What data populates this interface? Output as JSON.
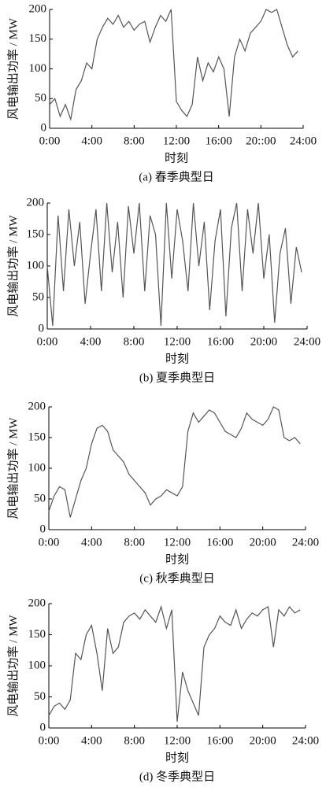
{
  "chart_data": [
    {
      "type": "line",
      "caption": "(a)  春季典型日",
      "xlabel": "时刻",
      "ylabel": "风电输出功率 / MW",
      "color": "#555555",
      "x": [
        0,
        0.5,
        1,
        1.5,
        2,
        2.5,
        3,
        3.5,
        4,
        4.5,
        5,
        5.5,
        6,
        6.5,
        7,
        7.5,
        8,
        8.5,
        9,
        9.5,
        10,
        10.5,
        11,
        11.5,
        12,
        12.5,
        13,
        13.5,
        14,
        14.5,
        15,
        15.5,
        16,
        16.5,
        17,
        17.5,
        18,
        18.5,
        19,
        19.5,
        20,
        20.5,
        21,
        21.5,
        22,
        22.5,
        23,
        23.5
      ],
      "values": [
        40,
        50,
        20,
        40,
        15,
        65,
        80,
        110,
        100,
        150,
        170,
        185,
        175,
        190,
        170,
        180,
        165,
        175,
        180,
        145,
        170,
        190,
        180,
        200,
        45,
        30,
        20,
        40,
        120,
        80,
        110,
        95,
        120,
        100,
        20,
        120,
        150,
        130,
        160,
        170,
        180,
        200,
        195,
        200,
        170,
        140,
        120,
        130
      ],
      "xlim": [
        0,
        24
      ],
      "ylim": [
        0,
        200
      ],
      "yticks": [
        0,
        50,
        100,
        150,
        200
      ],
      "xticks": [
        {
          "value": 0,
          "label": "0:00"
        },
        {
          "value": 4,
          "label": "4:00"
        },
        {
          "value": 8,
          "label": "8:00"
        },
        {
          "value": 12,
          "label": "12:00"
        },
        {
          "value": 16,
          "label": "16:00"
        },
        {
          "value": 20,
          "label": "20::00"
        },
        {
          "value": 24,
          "label": "24:00"
        }
      ]
    },
    {
      "type": "line",
      "caption": "(b)  夏季典型日",
      "xlabel": "时刻",
      "ylabel": "风电输出功率 / MW",
      "color": "#555555",
      "x": [
        0,
        0.5,
        1,
        1.5,
        2,
        2.5,
        3,
        3.5,
        4,
        4.5,
        5,
        5.5,
        6,
        6.5,
        7,
        7.5,
        8,
        8.5,
        9,
        9.5,
        10,
        10.5,
        11,
        11.5,
        12,
        12.5,
        13,
        13.5,
        14,
        14.5,
        15,
        15.5,
        16,
        16.5,
        17,
        17.5,
        18,
        18.5,
        19,
        19.5,
        20,
        20.5,
        21,
        21.5,
        22,
        22.5,
        23,
        23.5
      ],
      "values": [
        100,
        5,
        180,
        60,
        190,
        100,
        170,
        40,
        120,
        190,
        60,
        200,
        90,
        170,
        50,
        195,
        120,
        200,
        60,
        180,
        150,
        5,
        200,
        80,
        190,
        140,
        60,
        200,
        100,
        170,
        30,
        140,
        190,
        20,
        160,
        200,
        60,
        190,
        120,
        200,
        80,
        150,
        10,
        120,
        160,
        40,
        130,
        90
      ],
      "xlim": [
        0,
        24
      ],
      "ylim": [
        0,
        200
      ],
      "yticks": [
        0,
        50,
        100,
        150,
        200
      ],
      "xticks": [
        {
          "value": 0,
          "label": "0:00"
        },
        {
          "value": 4,
          "label": "4:00"
        },
        {
          "value": 8,
          "label": "8:00"
        },
        {
          "value": 12,
          "label": "12:00"
        },
        {
          "value": 16,
          "label": "16:00"
        },
        {
          "value": 20,
          "label": "20:00"
        },
        {
          "value": 24,
          "label": "24:00"
        }
      ]
    },
    {
      "type": "line",
      "caption": "(c)  秋季典型日",
      "xlabel": "时刻",
      "ylabel": "风电输出功率 / MW",
      "color": "#555555",
      "x": [
        0,
        0.5,
        1,
        1.5,
        2,
        2.5,
        3,
        3.5,
        4,
        4.5,
        5,
        5.5,
        6,
        6.5,
        7,
        7.5,
        8,
        8.5,
        9,
        9.5,
        10,
        10.5,
        11,
        11.5,
        12,
        12.5,
        13,
        13.5,
        14,
        14.5,
        15,
        15.5,
        16,
        16.5,
        17,
        17.5,
        18,
        18.5,
        19,
        19.5,
        20,
        20.5,
        21,
        21.5,
        22,
        22.5,
        23,
        23.5
      ],
      "values": [
        30,
        55,
        70,
        65,
        20,
        50,
        80,
        100,
        140,
        165,
        170,
        160,
        130,
        120,
        110,
        90,
        80,
        70,
        60,
        40,
        50,
        55,
        65,
        60,
        55,
        70,
        160,
        190,
        175,
        185,
        195,
        190,
        175,
        160,
        155,
        150,
        165,
        190,
        180,
        175,
        170,
        180,
        200,
        195,
        150,
        145,
        150,
        140
      ],
      "xlim": [
        0,
        24
      ],
      "ylim": [
        0,
        200
      ],
      "yticks": [
        0,
        50,
        100,
        150,
        200
      ],
      "xticks": [
        {
          "value": 0,
          "label": "0:00"
        },
        {
          "value": 4,
          "label": "4:00"
        },
        {
          "value": 8,
          "label": "8:00"
        },
        {
          "value": 12,
          "label": "12:00"
        },
        {
          "value": 16,
          "label": "16:00"
        },
        {
          "value": 20,
          "label": "20:00"
        },
        {
          "value": 24,
          "label": "24:00"
        }
      ]
    },
    {
      "type": "line",
      "caption": "(d)  冬季典型日",
      "xlabel": "时刻",
      "ylabel": "风电输出功率 / MW",
      "color": "#555555",
      "x": [
        0,
        0.5,
        1,
        1.5,
        2,
        2.5,
        3,
        3.5,
        4,
        4.5,
        5,
        5.5,
        6,
        6.5,
        7,
        7.5,
        8,
        8.5,
        9,
        9.5,
        10,
        10.5,
        11,
        11.5,
        12,
        12.5,
        13,
        13.5,
        14,
        14.5,
        15,
        15.5,
        16,
        16.5,
        17,
        17.5,
        18,
        18.5,
        19,
        19.5,
        20,
        20.5,
        21,
        21.5,
        22,
        22.5,
        23,
        23.5
      ],
      "values": [
        20,
        35,
        40,
        30,
        45,
        120,
        110,
        150,
        165,
        120,
        60,
        160,
        120,
        130,
        170,
        180,
        185,
        175,
        190,
        180,
        170,
        195,
        160,
        190,
        10,
        90,
        60,
        40,
        20,
        130,
        150,
        160,
        180,
        170,
        165,
        190,
        160,
        175,
        185,
        180,
        190,
        195,
        130,
        190,
        180,
        195,
        185,
        190
      ],
      "xlim": [
        0,
        24
      ],
      "ylim": [
        0,
        200
      ],
      "yticks": [
        0,
        50,
        100,
        150,
        200
      ],
      "xticks": [
        {
          "value": 0,
          "label": "0:00"
        },
        {
          "value": 4,
          "label": "4:00"
        },
        {
          "value": 8,
          "label": "8:00"
        },
        {
          "value": 12,
          "label": "12:00"
        },
        {
          "value": 16,
          "label": "16:00"
        },
        {
          "value": 20,
          "label": "20:00"
        },
        {
          "value": 24,
          "label": "24:00"
        }
      ]
    }
  ]
}
